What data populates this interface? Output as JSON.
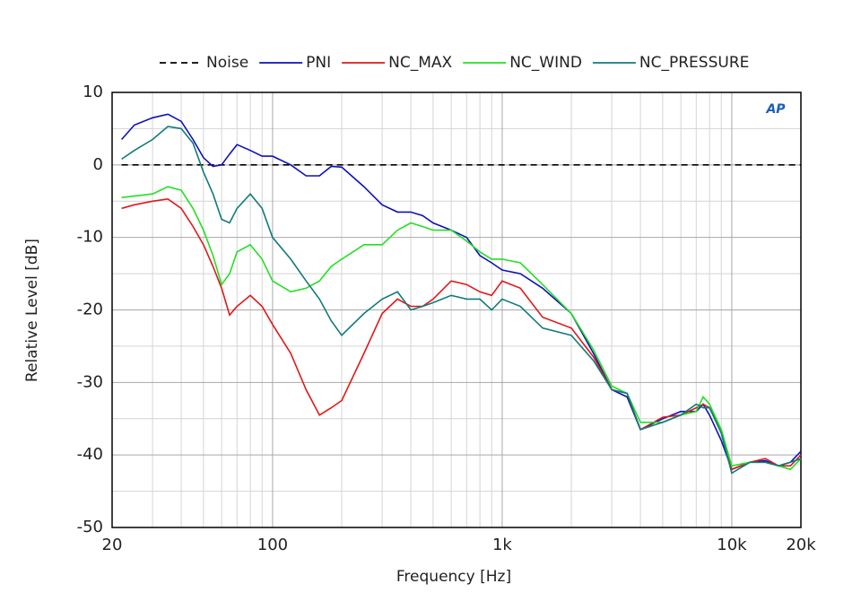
{
  "chart_data": {
    "type": "line",
    "xlabel": "Frequency [Hz]",
    "ylabel": "Relative Level [dB]",
    "logo": "AP",
    "xscale": "log",
    "grid": true,
    "minor_grid": true,
    "legend": "top",
    "xlim": [
      20,
      20000
    ],
    "xticks": [
      20,
      100,
      {
        "value": 1000,
        "label": "1k"
      },
      {
        "value": 10000,
        "label": "10k"
      },
      {
        "value": 20000,
        "label": "20k"
      }
    ],
    "ylim": [
      -50,
      10
    ],
    "yticks": [
      -50,
      -40,
      -30,
      -20,
      -10,
      0,
      10
    ],
    "x": [
      22,
      25,
      30,
      35,
      40,
      45,
      50,
      55,
      60,
      65,
      70,
      80,
      90,
      100,
      120,
      140,
      160,
      180,
      200,
      250,
      300,
      350,
      400,
      450,
      500,
      600,
      700,
      800,
      900,
      1000,
      1200,
      1500,
      2000,
      2500,
      3000,
      3500,
      4000,
      5000,
      6000,
      7000,
      7500,
      8000,
      9000,
      10000,
      12000,
      14000,
      16000,
      18000,
      20000
    ],
    "series": [
      {
        "name": "Noise",
        "color": "#000000",
        "dash": true,
        "x": [
          22,
          20000
        ],
        "values": [
          0,
          0
        ]
      },
      {
        "name": "PNI",
        "color": "#1010b8",
        "values": [
          3.5,
          5.5,
          6.5,
          7,
          6,
          3.5,
          1,
          -0.2,
          0,
          1.5,
          2.8,
          2,
          1.2,
          1.2,
          0,
          -1.5,
          -1.5,
          -0.2,
          -0.3,
          -3,
          -5.5,
          -6.5,
          -6.5,
          -7,
          -8,
          -9,
          -10,
          -12.5,
          -13.5,
          -14.5,
          -15,
          -17,
          -20.5,
          -26,
          -31,
          -32,
          -36.5,
          -35,
          -34,
          -34,
          -33,
          -34.5,
          -38,
          -42,
          -41,
          -40.8,
          -41.5,
          -41,
          -39.5
        ]
      },
      {
        "name": "NC_MAX",
        "color": "#e01818",
        "values": [
          -6,
          -5.5,
          -5,
          -4.7,
          -6,
          -8.5,
          -11,
          -14,
          -17,
          -20.7,
          -19.5,
          -18,
          -19.5,
          -22,
          -26,
          -31,
          -34.5,
          -33.5,
          -32.5,
          -26,
          -20.5,
          -18.5,
          -19.5,
          -19.5,
          -18.5,
          -16,
          -16.5,
          -17.5,
          -18,
          -16,
          -17,
          -21,
          -22.5,
          -26.5,
          -31,
          -31.5,
          -36.5,
          -34.8,
          -34.5,
          -33.5,
          -33,
          -33.5,
          -36.5,
          -42,
          -41,
          -40.5,
          -41.5,
          -41.5,
          -40
        ]
      },
      {
        "name": "NC_WIND",
        "color": "#22e022",
        "values": [
          -4.5,
          -4.3,
          -4,
          -3,
          -3.5,
          -6,
          -9,
          -12.5,
          -16.5,
          -15,
          -12,
          -11,
          -13,
          -16,
          -17.5,
          -17,
          -16,
          -14,
          -13,
          -11,
          -11,
          -9,
          -8,
          -8.5,
          -9,
          -9,
          -10.5,
          -12,
          -13,
          -13,
          -13.5,
          -16.5,
          -20.5,
          -25.5,
          -30.5,
          -31.5,
          -35.5,
          -35.5,
          -34.5,
          -34,
          -32,
          -33,
          -36.5,
          -41.5,
          -41,
          -41,
          -41.5,
          -42,
          -40.5
        ]
      },
      {
        "name": "NC_PRESSURE",
        "color": "#127a7a",
        "values": [
          0.8,
          2,
          3.5,
          5.3,
          5,
          3,
          -1,
          -4,
          -7.5,
          -8,
          -6,
          -4,
          -6,
          -10,
          -13,
          -16,
          -18.5,
          -21.5,
          -23.5,
          -20.5,
          -18.5,
          -17.5,
          -20,
          -19.5,
          -19,
          -18,
          -18.5,
          -18.5,
          -20,
          -18.5,
          -19.5,
          -22.5,
          -23.5,
          -27,
          -31,
          -31.5,
          -36.5,
          -35.5,
          -34.5,
          -33,
          -33.5,
          -33.5,
          -37,
          -42.5,
          -41,
          -41,
          -41.5,
          -41,
          -40.5
        ]
      }
    ]
  }
}
